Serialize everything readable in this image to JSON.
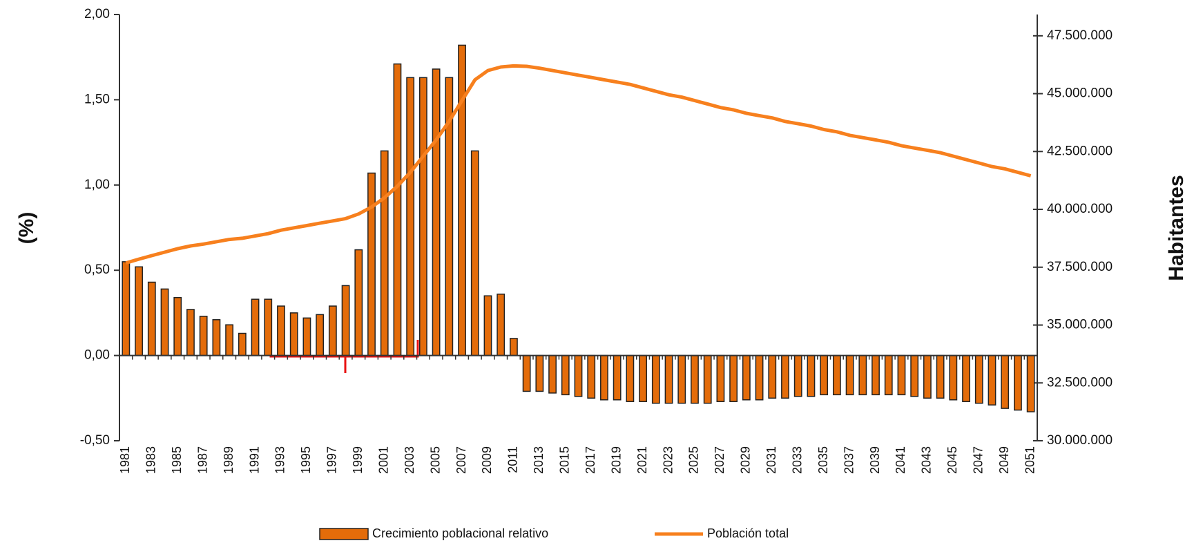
{
  "chart_data": {
    "type": "bar",
    "ylabel": "(%)",
    "y2label": "Habitantes",
    "categories": [
      "1981",
      null,
      "1983",
      null,
      "1985",
      null,
      "1987",
      null,
      "1989",
      null,
      "1991",
      null,
      "1993",
      null,
      "1995",
      null,
      "1997",
      null,
      "1999",
      null,
      "2001",
      null,
      "2003",
      null,
      "2005",
      null,
      "2007",
      null,
      "2009",
      null,
      "2011",
      null,
      "2013",
      null,
      "2015",
      null,
      "2017",
      null,
      "2019",
      null,
      "2021",
      null,
      "2023",
      null,
      "2025",
      null,
      "2027",
      null,
      "2029",
      null,
      "2031",
      null,
      "2033",
      null,
      "2035",
      null,
      "2037",
      null,
      "2039",
      null,
      "2041",
      null,
      "2043",
      null,
      "2045",
      null,
      "2047",
      null,
      "2049",
      null,
      "2051"
    ],
    "series": [
      {
        "name": "Crecimiento poblacional relativo",
        "type": "bar",
        "color": "#e46c0a",
        "values": [
          0.55,
          0.52,
          0.43,
          0.39,
          0.34,
          0.27,
          0.23,
          0.21,
          0.18,
          0.13,
          0.33,
          0.33,
          0.29,
          0.25,
          0.22,
          0.24,
          0.29,
          0.41,
          0.62,
          1.07,
          1.2,
          1.71,
          1.63,
          1.63,
          1.68,
          1.63,
          1.82,
          1.2,
          0.35,
          0.36,
          0.1,
          -0.21,
          -0.21,
          -0.22,
          -0.23,
          -0.24,
          -0.25,
          -0.26,
          -0.26,
          -0.27,
          -0.27,
          -0.28,
          -0.28,
          -0.28,
          -0.28,
          -0.28,
          -0.27,
          -0.27,
          -0.26,
          -0.26,
          -0.25,
          -0.25,
          -0.24,
          -0.24,
          -0.23,
          -0.23,
          -0.23,
          -0.23,
          -0.23,
          -0.23,
          -0.23,
          -0.24,
          -0.25,
          -0.25,
          -0.26,
          -0.27,
          -0.28,
          -0.29,
          -0.31,
          -0.32,
          -0.33
        ]
      },
      {
        "name": "Población total",
        "type": "line",
        "axis": "y2",
        "color": "#f7801e",
        "values": [
          37683000,
          37850000,
          38000000,
          38150000,
          38300000,
          38420000,
          38500000,
          38600000,
          38700000,
          38750000,
          38850000,
          38950000,
          39100000,
          39200000,
          39300000,
          39400000,
          39500000,
          39600000,
          39800000,
          40100000,
          40500000,
          41000000,
          41600000,
          42300000,
          43000000,
          43800000,
          44700000,
          45600000,
          46000000,
          46150000,
          46200000,
          46180000,
          46100000,
          46000000,
          45900000,
          45800000,
          45700000,
          45600000,
          45500000,
          45400000,
          45250000,
          45100000,
          44950000,
          44850000,
          44700000,
          44550000,
          44400000,
          44300000,
          44150000,
          44050000,
          43950000,
          43800000,
          43700000,
          43600000,
          43450000,
          43350000,
          43200000,
          43100000,
          43000000,
          42900000,
          42750000,
          42650000,
          42550000,
          42450000,
          42300000,
          42150000,
          42000000,
          41850000,
          41750000,
          41600000,
          41450000
        ]
      }
    ],
    "ylim": [
      -0.5,
      2.0
    ],
    "yticks": [
      {
        "value": -0.5,
        "label": "-0,50"
      },
      {
        "value": 0,
        "label": "0,00"
      },
      {
        "value": 0.5,
        "label": "0,50"
      },
      {
        "value": 1.0,
        "label": "1,00"
      },
      {
        "value": 1.5,
        "label": "1,50"
      },
      {
        "value": 2.0,
        "label": "2,00"
      }
    ],
    "y2lim": [
      30000000,
      48420000
    ],
    "y2ticks": [
      {
        "value": 30000000,
        "label": "30.000.000"
      },
      {
        "value": 32500000,
        "label": "32.500.000"
      },
      {
        "value": 35000000,
        "label": "35.000.000"
      },
      {
        "value": 37500000,
        "label": "37.500.000"
      },
      {
        "value": 40000000,
        "label": "40.000.000"
      },
      {
        "value": 42500000,
        "label": "42.500.000"
      },
      {
        "value": 45000000,
        "label": "45.000.000"
      },
      {
        "value": 47500000,
        "label": "47.500.000"
      }
    ],
    "grid": false,
    "legend": "bottom"
  }
}
